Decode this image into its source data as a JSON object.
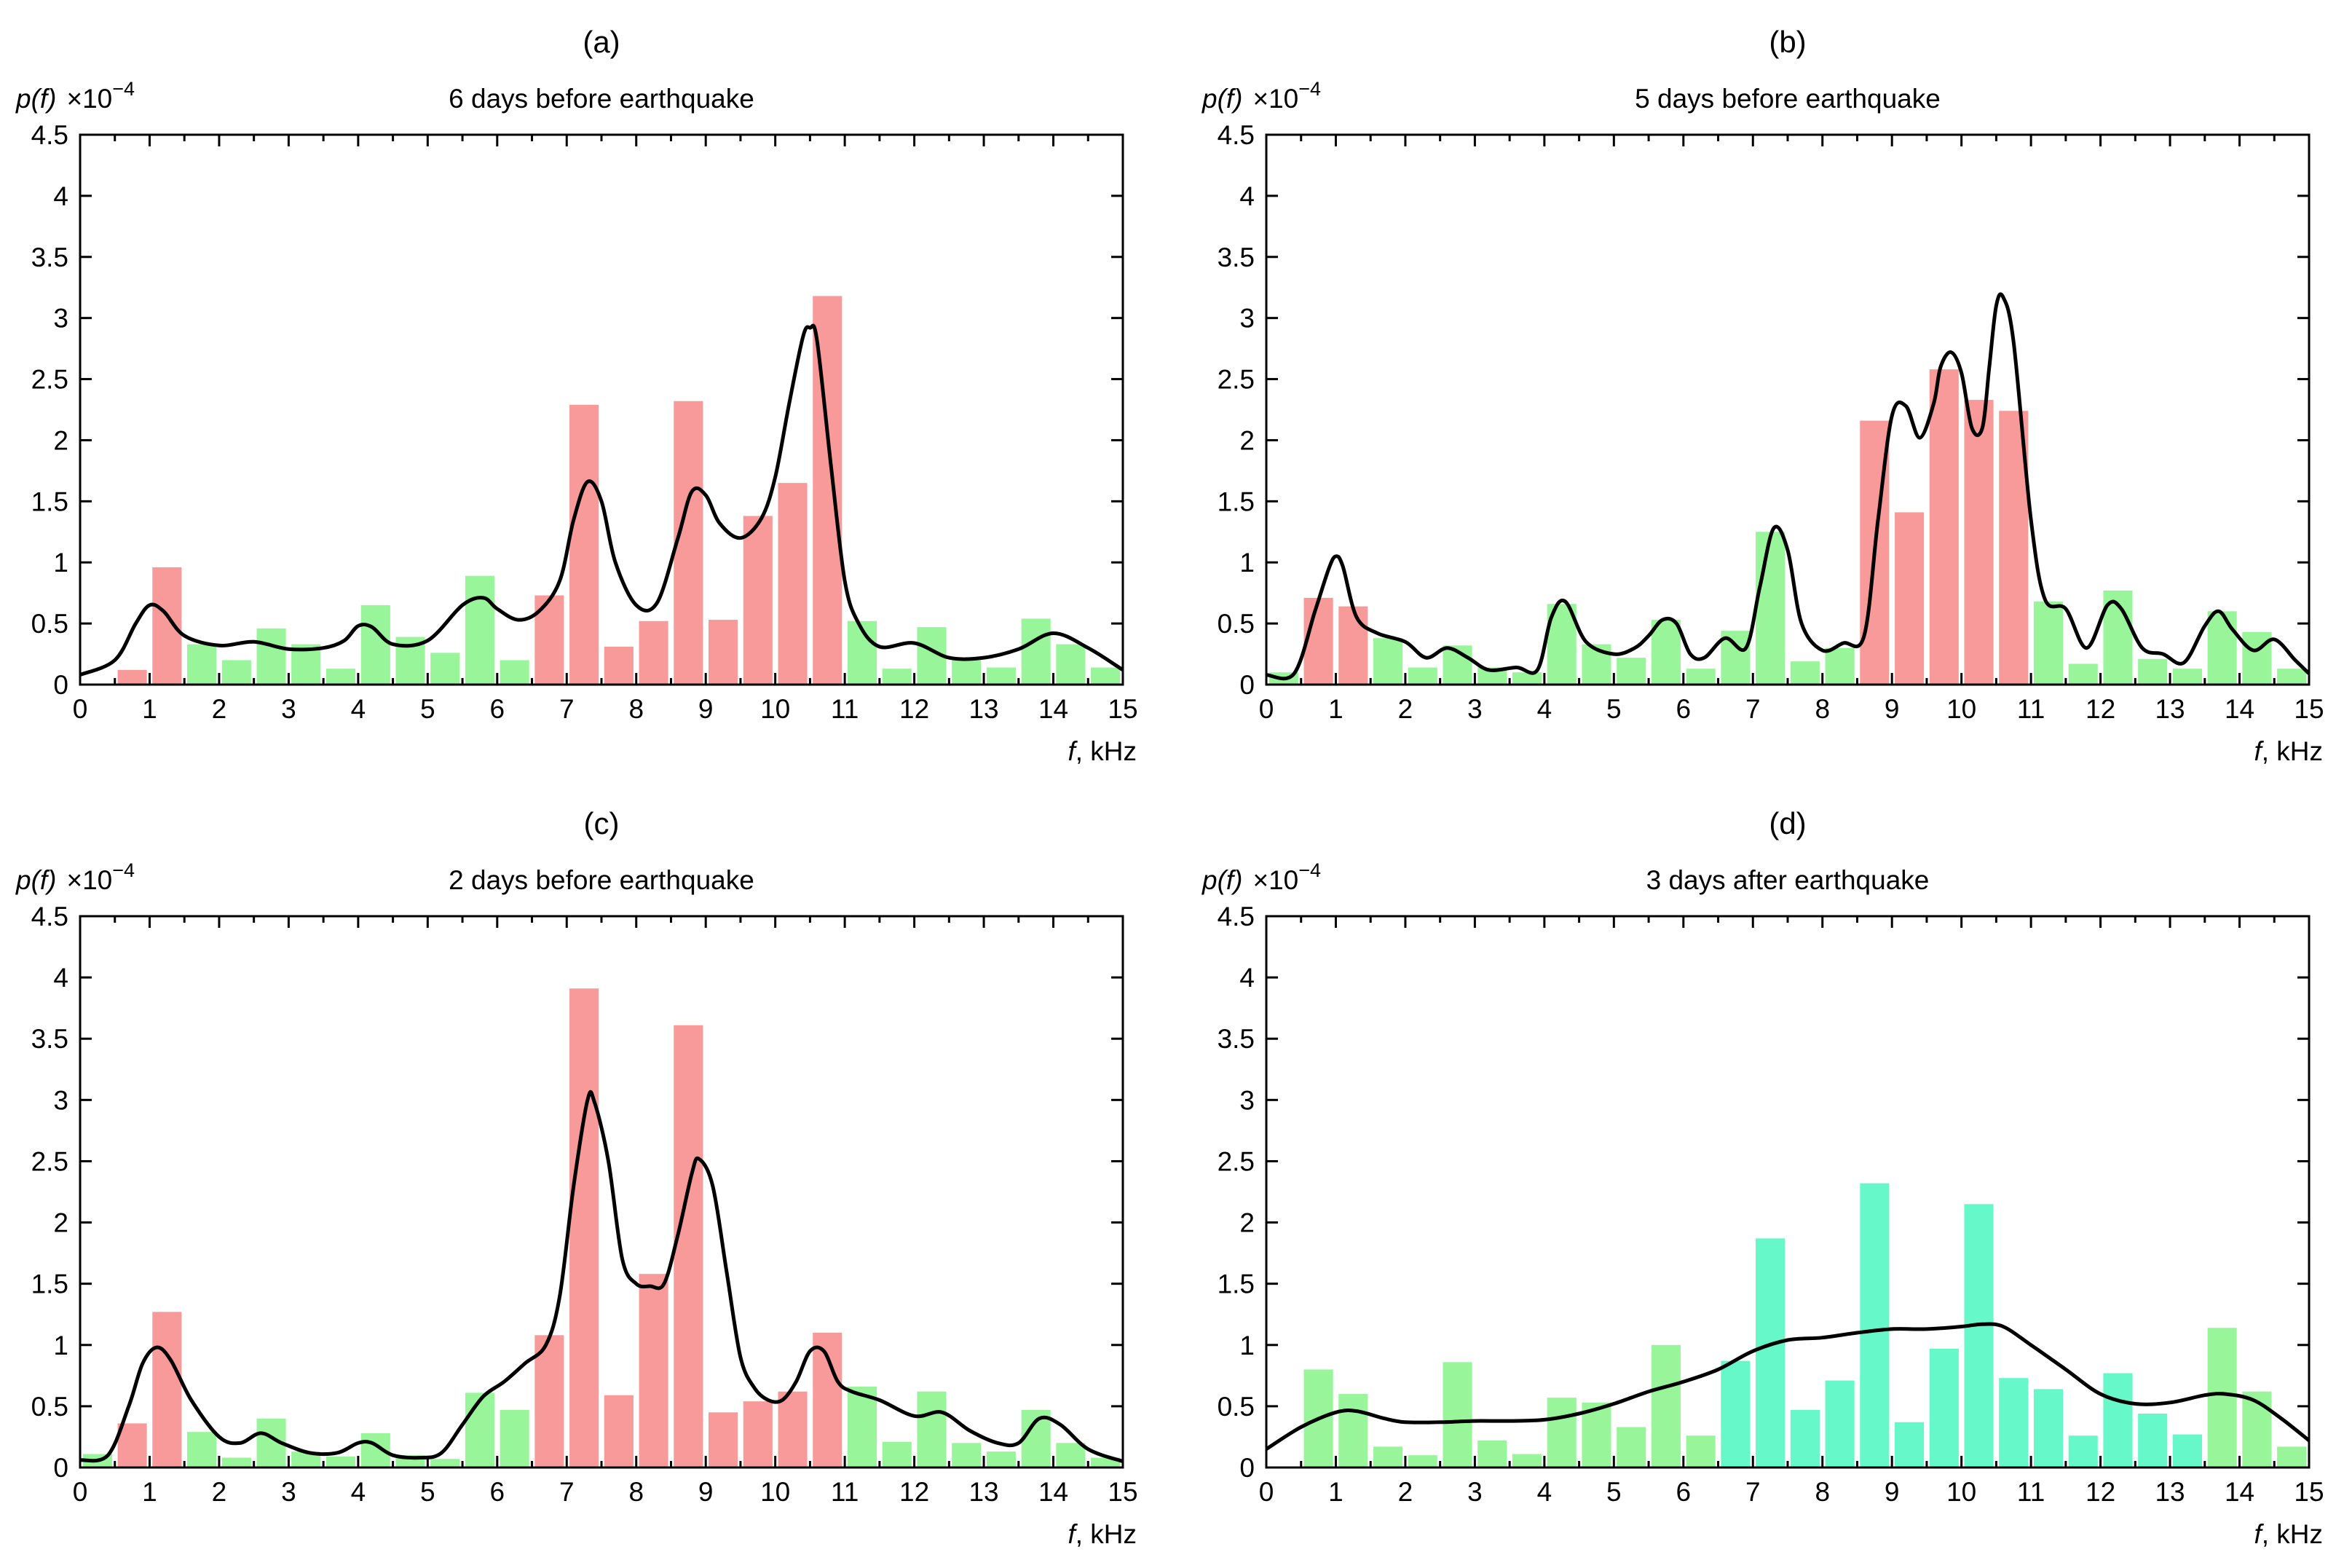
{
  "colors": {
    "red": "#f99a9a",
    "green": "#99f59a",
    "cyan": "#66f8c8",
    "line": "#000000"
  },
  "chart_data": [
    {
      "type": "bar",
      "panel_label": "(a)",
      "title": "6 days before earthquake",
      "ylabel_main": "p(f)",
      "ylabel_scale": "×10",
      "ylabel_exp": "−4",
      "xlabel_var": "f",
      "xlabel_unit": ", kHz",
      "xlim": [
        0,
        15
      ],
      "ylim": [
        0,
        4.5
      ],
      "xticks": [
        "0",
        "1",
        "2",
        "3",
        "4",
        "5",
        "6",
        "7",
        "8",
        "9",
        "10",
        "11",
        "12",
        "13",
        "14",
        "15"
      ],
      "yticks": [
        "0",
        "0.5",
        "1",
        "1.5",
        "2",
        "2.5",
        "3",
        "3.5",
        "4",
        "4.5"
      ],
      "categories": [
        0.75,
        1.25,
        1.75,
        2.25,
        2.75,
        3.25,
        3.75,
        4.25,
        4.75,
        5.25,
        5.75,
        6.25,
        6.75,
        7.25,
        7.75,
        8.25,
        8.75,
        9.25,
        9.75,
        10.25,
        10.75,
        11.25,
        11.75,
        12.25,
        12.75,
        13.25,
        13.75,
        14.25,
        14.75
      ],
      "values": [
        0.12,
        0.96,
        0.33,
        0.2,
        0.46,
        0.33,
        0.13,
        0.65,
        0.39,
        0.26,
        0.89,
        0.2,
        0.73,
        2.29,
        0.31,
        0.52,
        2.32,
        0.53,
        1.38,
        1.65,
        3.18,
        0.52,
        0.13,
        0.47,
        0.2,
        0.14,
        0.54,
        0.33,
        0.14
      ],
      "bar_colors": [
        "red",
        "red",
        "green",
        "green",
        "green",
        "green",
        "green",
        "green",
        "green",
        "green",
        "green",
        "green",
        "red",
        "red",
        "red",
        "red",
        "red",
        "red",
        "red",
        "red",
        "red",
        "green",
        "green",
        "green",
        "green",
        "green",
        "green",
        "green",
        "green"
      ],
      "curve": {
        "x": [
          0,
          0.5,
          0.8,
          1,
          1.2,
          1.5,
          2,
          2.5,
          3,
          3.5,
          3.8,
          4,
          4.2,
          4.5,
          5,
          5.5,
          5.8,
          6,
          6.3,
          6.6,
          6.9,
          7.1,
          7.3,
          7.5,
          7.7,
          8,
          8.3,
          8.6,
          8.8,
          9,
          9.2,
          9.5,
          9.8,
          10,
          10.2,
          10.4,
          10.5,
          10.6,
          10.8,
          11,
          11.2,
          11.5,
          12,
          12.5,
          13,
          13.5,
          14,
          14.5,
          15
        ],
        "y": [
          0.08,
          0.2,
          0.5,
          0.65,
          0.6,
          0.4,
          0.32,
          0.35,
          0.29,
          0.3,
          0.36,
          0.48,
          0.47,
          0.33,
          0.36,
          0.65,
          0.71,
          0.62,
          0.53,
          0.6,
          0.85,
          1.35,
          1.66,
          1.5,
          1.0,
          0.65,
          0.67,
          1.2,
          1.58,
          1.55,
          1.32,
          1.2,
          1.36,
          1.7,
          2.3,
          2.85,
          2.92,
          2.82,
          1.8,
          0.85,
          0.5,
          0.31,
          0.34,
          0.22,
          0.22,
          0.29,
          0.42,
          0.3,
          0.12
        ]
      }
    },
    {
      "type": "bar",
      "panel_label": "(b)",
      "title": "5 days before earthquake",
      "ylabel_main": "p(f)",
      "ylabel_scale": "×10",
      "ylabel_exp": "−4",
      "xlabel_var": "f",
      "xlabel_unit": ", kHz",
      "xlim": [
        0,
        15
      ],
      "ylim": [
        0,
        4.5
      ],
      "xticks": [
        "0",
        "1",
        "2",
        "3",
        "4",
        "5",
        "6",
        "7",
        "8",
        "9",
        "10",
        "11",
        "12",
        "13",
        "14",
        "15"
      ],
      "yticks": [
        "0",
        "0.5",
        "1",
        "1.5",
        "2",
        "2.5",
        "3",
        "3.5",
        "4",
        "4.5"
      ],
      "categories": [
        0.25,
        0.75,
        1.25,
        1.75,
        2.25,
        2.75,
        3.25,
        3.75,
        4.25,
        4.75,
        5.25,
        5.75,
        6.25,
        6.75,
        7.25,
        7.75,
        8.25,
        8.75,
        9.25,
        9.75,
        10.25,
        10.75,
        11.25,
        11.75,
        12.25,
        12.75,
        13.25,
        13.75,
        14.25,
        14.75
      ],
      "values": [
        0.1,
        0.71,
        0.64,
        0.38,
        0.14,
        0.32,
        0.14,
        0.1,
        0.66,
        0.33,
        0.22,
        0.53,
        0.13,
        0.44,
        1.25,
        0.19,
        0.3,
        2.16,
        1.41,
        2.58,
        2.33,
        2.24,
        0.68,
        0.17,
        0.77,
        0.21,
        0.13,
        0.6,
        0.43,
        0.13
      ],
      "bar_colors": [
        "green",
        "red",
        "red",
        "green",
        "green",
        "green",
        "green",
        "green",
        "green",
        "green",
        "green",
        "green",
        "green",
        "green",
        "green",
        "green",
        "green",
        "red",
        "red",
        "red",
        "red",
        "red",
        "green",
        "green",
        "green",
        "green",
        "green",
        "green",
        "green",
        "green"
      ],
      "curve": {
        "x": [
          0,
          0.4,
          0.7,
          0.9,
          1,
          1.1,
          1.3,
          1.6,
          2,
          2.3,
          2.6,
          2.9,
          3.2,
          3.6,
          3.9,
          4.1,
          4.3,
          4.6,
          5,
          5.3,
          5.5,
          5.7,
          5.9,
          6.1,
          6.3,
          6.6,
          6.9,
          7.1,
          7.3,
          7.5,
          7.7,
          8,
          8.3,
          8.6,
          8.8,
          9,
          9.2,
          9.4,
          9.6,
          9.7,
          9.85,
          10,
          10.15,
          10.3,
          10.4,
          10.5,
          10.6,
          10.75,
          11,
          11.2,
          11.5,
          11.8,
          12.1,
          12.3,
          12.6,
          12.9,
          13.2,
          13.5,
          13.7,
          13.9,
          14.2,
          14.5,
          14.8,
          15
        ],
        "y": [
          0.08,
          0.09,
          0.6,
          0.95,
          1.05,
          0.97,
          0.55,
          0.42,
          0.35,
          0.22,
          0.3,
          0.22,
          0.12,
          0.14,
          0.12,
          0.55,
          0.68,
          0.35,
          0.25,
          0.3,
          0.4,
          0.53,
          0.5,
          0.25,
          0.22,
          0.38,
          0.3,
          0.8,
          1.28,
          1.1,
          0.5,
          0.28,
          0.34,
          0.4,
          1.35,
          2.2,
          2.28,
          2.02,
          2.3,
          2.6,
          2.72,
          2.55,
          2.1,
          2.1,
          2.6,
          3.1,
          3.17,
          2.8,
          1.35,
          0.7,
          0.62,
          0.3,
          0.65,
          0.62,
          0.3,
          0.25,
          0.18,
          0.48,
          0.6,
          0.45,
          0.28,
          0.37,
          0.2,
          0.09
        ]
      }
    },
    {
      "type": "bar",
      "panel_label": "(c)",
      "title": "2 days before earthquake",
      "ylabel_main": "p(f)",
      "ylabel_scale": "×10",
      "ylabel_exp": "−4",
      "xlabel_var": "f",
      "xlabel_unit": ", kHz",
      "xlim": [
        0,
        15
      ],
      "ylim": [
        0,
        4.5
      ],
      "xticks": [
        "0",
        "1",
        "2",
        "3",
        "4",
        "5",
        "6",
        "7",
        "8",
        "9",
        "10",
        "11",
        "12",
        "13",
        "14",
        "15"
      ],
      "yticks": [
        "0",
        "0.5",
        "1",
        "1.5",
        "2",
        "2.5",
        "3",
        "3.5",
        "4",
        "4.5"
      ],
      "categories": [
        0.25,
        0.75,
        1.25,
        1.75,
        2.25,
        2.75,
        3.25,
        3.75,
        4.25,
        4.75,
        5.25,
        5.75,
        6.25,
        6.75,
        7.25,
        7.75,
        8.25,
        8.75,
        9.25,
        9.75,
        10.25,
        10.75,
        11.25,
        11.75,
        12.25,
        12.75,
        13.25,
        13.75,
        14.25,
        14.75
      ],
      "values": [
        0.11,
        0.36,
        1.27,
        0.29,
        0.08,
        0.4,
        0.13,
        0.09,
        0.28,
        0.1,
        0.07,
        0.61,
        0.47,
        1.08,
        3.91,
        0.59,
        1.58,
        3.61,
        0.45,
        0.54,
        0.62,
        1.1,
        0.66,
        0.21,
        0.62,
        0.2,
        0.13,
        0.47,
        0.2,
        0.08
      ],
      "bar_colors": [
        "green",
        "red",
        "red",
        "green",
        "green",
        "green",
        "green",
        "green",
        "green",
        "green",
        "green",
        "green",
        "green",
        "red",
        "red",
        "red",
        "red",
        "red",
        "red",
        "red",
        "red",
        "red",
        "green",
        "green",
        "green",
        "green",
        "green",
        "green",
        "green",
        "green"
      ],
      "curve": {
        "x": [
          0,
          0.4,
          0.7,
          0.9,
          1.1,
          1.3,
          1.6,
          2,
          2.3,
          2.6,
          2.9,
          3.3,
          3.7,
          4,
          4.2,
          4.5,
          4.9,
          5.2,
          5.5,
          5.8,
          6.1,
          6.4,
          6.7,
          6.9,
          7.1,
          7.3,
          7.4,
          7.6,
          7.8,
          8,
          8.2,
          8.4,
          8.6,
          8.8,
          8.9,
          9.1,
          9.3,
          9.5,
          9.7,
          9.9,
          10.1,
          10.3,
          10.5,
          10.7,
          10.9,
          11.1,
          11.5,
          12,
          12.4,
          12.8,
          13.2,
          13.5,
          13.8,
          14.1,
          14.5,
          15
        ],
        "y": [
          0.06,
          0.1,
          0.5,
          0.85,
          0.98,
          0.88,
          0.55,
          0.25,
          0.2,
          0.28,
          0.2,
          0.12,
          0.12,
          0.2,
          0.2,
          0.1,
          0.08,
          0.12,
          0.35,
          0.58,
          0.7,
          0.85,
          1.0,
          1.4,
          2.3,
          3.0,
          2.98,
          2.5,
          1.7,
          1.5,
          1.48,
          1.5,
          1.9,
          2.4,
          2.52,
          2.3,
          1.6,
          0.9,
          0.65,
          0.55,
          0.55,
          0.7,
          0.95,
          0.95,
          0.7,
          0.62,
          0.55,
          0.42,
          0.45,
          0.3,
          0.2,
          0.2,
          0.4,
          0.35,
          0.15,
          0.05
        ]
      }
    },
    {
      "type": "bar",
      "panel_label": "(d)",
      "title": "3 days after earthquake",
      "ylabel_main": "p(f)",
      "ylabel_scale": "×10",
      "ylabel_exp": "−4",
      "xlabel_var": "f",
      "xlabel_unit": ", kHz",
      "xlim": [
        0,
        15
      ],
      "ylim": [
        0,
        4.5
      ],
      "xticks": [
        "0",
        "1",
        "2",
        "3",
        "4",
        "5",
        "6",
        "7",
        "8",
        "9",
        "10",
        "11",
        "12",
        "13",
        "14",
        "15"
      ],
      "yticks": [
        "0",
        "0.5",
        "1",
        "1.5",
        "2",
        "2.5",
        "3",
        "3.5",
        "4",
        "4.5"
      ],
      "categories": [
        0.75,
        1.25,
        1.75,
        2.25,
        2.75,
        3.25,
        3.75,
        4.25,
        4.75,
        5.25,
        5.75,
        6.25,
        6.75,
        7.25,
        7.75,
        8.25,
        8.75,
        9.25,
        9.75,
        10.25,
        10.75,
        11.25,
        11.75,
        12.25,
        12.75,
        13.25,
        13.75,
        14.25,
        14.75
      ],
      "values": [
        0.8,
        0.6,
        0.17,
        0.1,
        0.86,
        0.22,
        0.11,
        0.57,
        0.53,
        0.33,
        1.0,
        0.26,
        0.87,
        1.87,
        0.47,
        0.71,
        2.32,
        0.37,
        0.97,
        2.15,
        0.73,
        0.64,
        0.26,
        0.77,
        0.44,
        0.27,
        1.14,
        0.62,
        0.17
      ],
      "bar_colors": [
        "green",
        "green",
        "green",
        "green",
        "green",
        "green",
        "green",
        "green",
        "green",
        "green",
        "green",
        "green",
        "cyan",
        "cyan",
        "cyan",
        "cyan",
        "cyan",
        "cyan",
        "cyan",
        "cyan",
        "cyan",
        "cyan",
        "cyan",
        "cyan",
        "cyan",
        "cyan",
        "green",
        "green",
        "green"
      ],
      "curve": {
        "x": [
          0,
          0.5,
          1,
          1.3,
          1.7,
          2,
          2.5,
          3,
          3.5,
          4,
          4.5,
          5,
          5.5,
          6,
          6.5,
          7,
          7.5,
          8,
          8.5,
          9,
          9.5,
          10,
          10.3,
          10.6,
          11,
          11.5,
          12,
          12.5,
          13,
          13.5,
          13.8,
          14.2,
          14.6,
          15
        ],
        "y": [
          0.15,
          0.33,
          0.45,
          0.46,
          0.4,
          0.37,
          0.37,
          0.38,
          0.38,
          0.39,
          0.44,
          0.52,
          0.62,
          0.7,
          0.8,
          0.95,
          1.04,
          1.06,
          1.1,
          1.13,
          1.13,
          1.15,
          1.17,
          1.15,
          1.0,
          0.8,
          0.6,
          0.52,
          0.53,
          0.59,
          0.6,
          0.55,
          0.4,
          0.22
        ]
      }
    }
  ]
}
